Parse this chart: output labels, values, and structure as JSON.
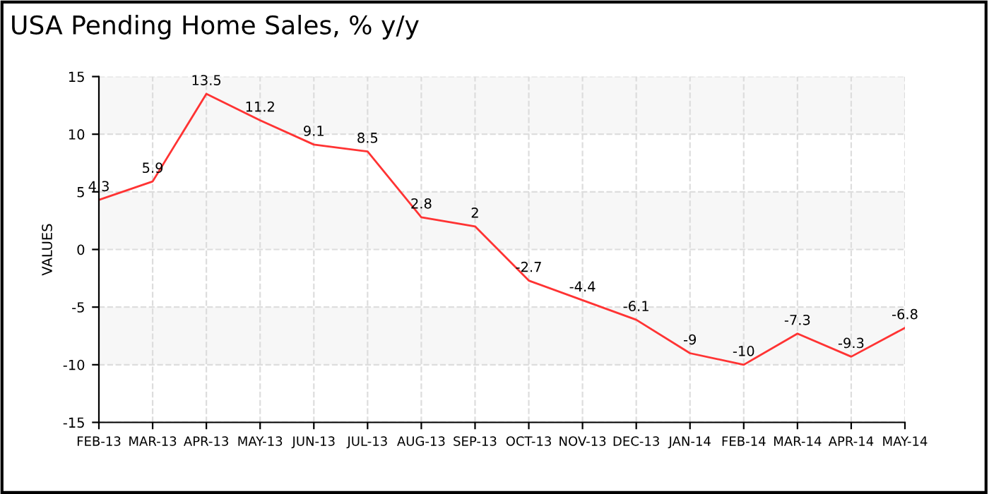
{
  "chart_data": {
    "type": "line",
    "title": "USA Pending Home Sales, % y/y",
    "ylabel": "VALUES",
    "categories": [
      "FEB-13",
      "MAR-13",
      "APR-13",
      "MAY-13",
      "JUN-13",
      "JUL-13",
      "AUG-13",
      "SEP-13",
      "OCT-13",
      "NOV-13",
      "DEC-13",
      "JAN-14",
      "FEB-14",
      "MAR-14",
      "APR-14",
      "MAY-14"
    ],
    "series": [
      {
        "color": "#ff3333",
        "values": [
          4.3,
          5.9,
          13.5,
          11.2,
          9.1,
          8.5,
          2.8,
          2,
          -2.7,
          -4.4,
          -6.1,
          -9,
          -10,
          -7.3,
          -9.3,
          -6.8
        ]
      }
    ],
    "ylim": [
      -15,
      15
    ],
    "yticks": [
      -15,
      -10,
      -5,
      0,
      5,
      10,
      15
    ],
    "bands": [
      {
        "axis": "y",
        "from": 10,
        "to": 15,
        "color": "#f7f7f7"
      },
      {
        "axis": "y",
        "from": 0,
        "to": 5,
        "color": "#f7f7f7"
      },
      {
        "axis": "y",
        "from": -10,
        "to": -5,
        "color": "#f7f7f7"
      }
    ],
    "grid": true,
    "data_labels": true,
    "marker": "none",
    "line_style": "solid",
    "legend": false
  }
}
